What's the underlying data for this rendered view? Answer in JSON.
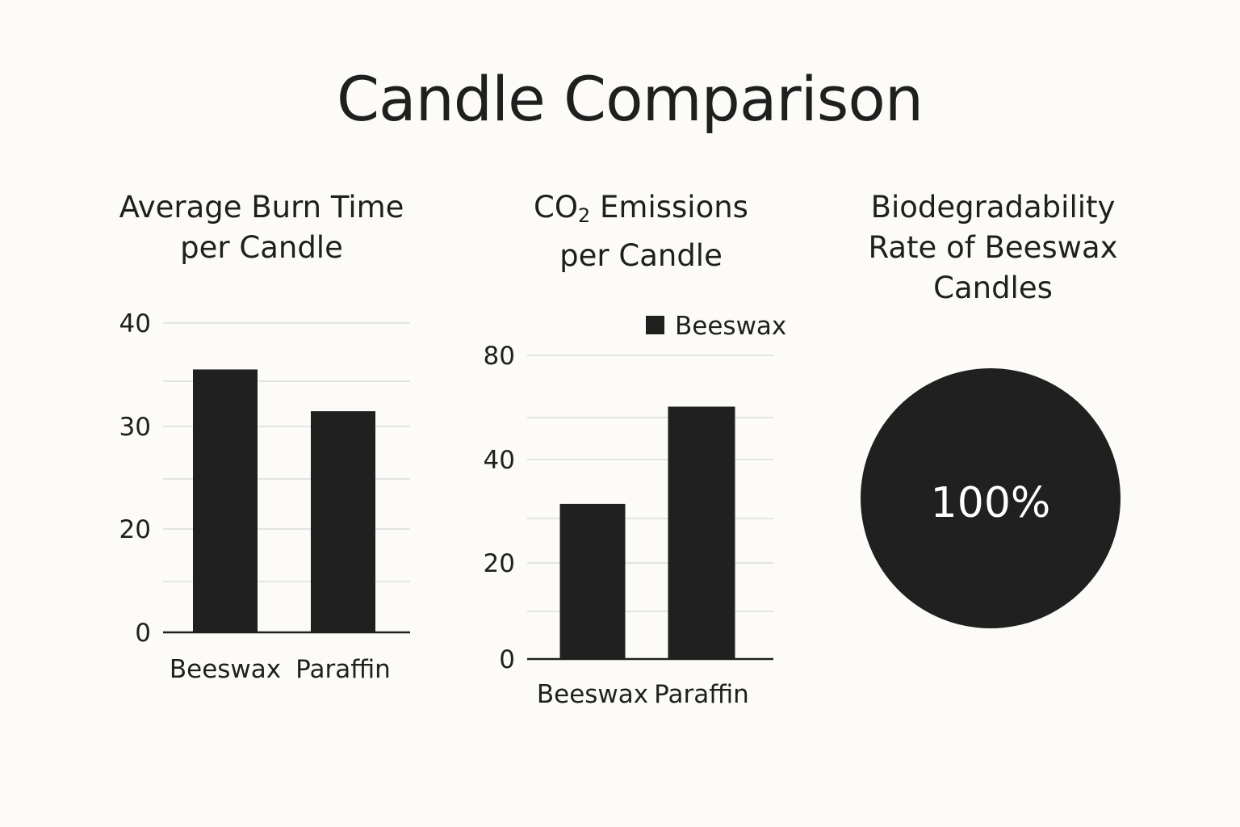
{
  "title": "Candle Comparison",
  "chart_data": [
    {
      "type": "bar",
      "title_line1": "Average Burn Time",
      "title_line2": "per Candle",
      "categories": [
        "Beeswax",
        "Paraffin"
      ],
      "values": [
        34,
        28.6
      ],
      "ylim": [
        0,
        40
      ],
      "yticks": [
        0,
        20,
        30,
        40
      ],
      "grid": true,
      "bar_color": "#1f201f"
    },
    {
      "type": "bar",
      "title_line1_pre": "CO",
      "title_line1_sub": "2",
      "title_line1_post": " Emissions",
      "title_line2": "per Candle",
      "categories": [
        "Beeswax",
        "Paraffin"
      ],
      "values": [
        33.5,
        54.5
      ],
      "ylim": [
        0,
        60
      ],
      "yticks": [
        0,
        20,
        40,
        80
      ],
      "legend": "Beeswax",
      "legend_position": "top-right",
      "grid": true,
      "bar_color": "#1f201f"
    },
    {
      "type": "pie",
      "title_line1": "Biodegradability",
      "title_line2": "Rate of Beeswax",
      "title_line3": "Candles",
      "values": [
        100
      ],
      "label": "100%",
      "color": "#1f201f"
    }
  ]
}
